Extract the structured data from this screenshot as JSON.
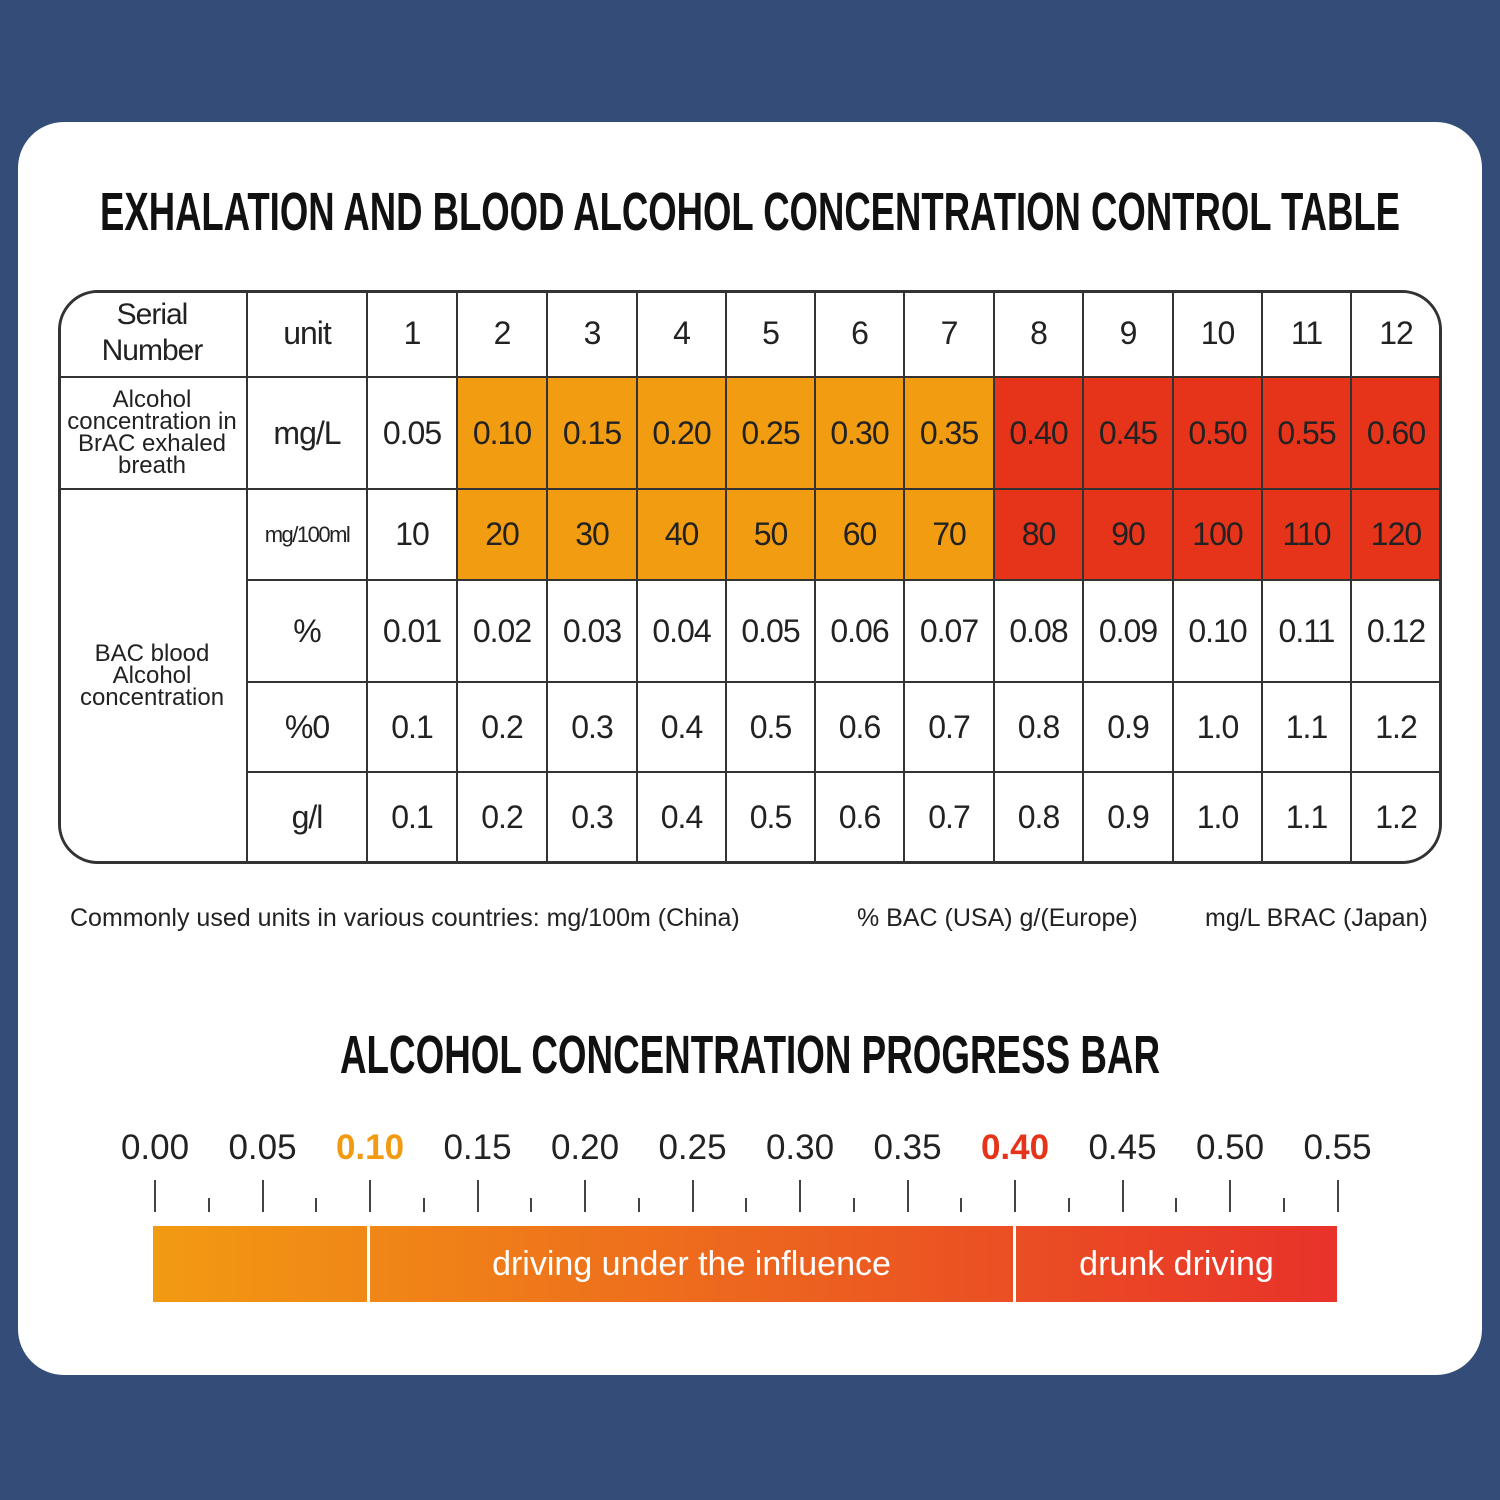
{
  "title": "EXHALATION AND BLOOD ALCOHOL CONCENTRATION CONTROL TABLE",
  "table": {
    "header": [
      "Serial Number",
      "unit",
      "1",
      "2",
      "3",
      "4",
      "5",
      "6",
      "7",
      "8",
      "9",
      "10",
      "11",
      "12"
    ],
    "rows": [
      {
        "label": "Alcohol concentration in BrAC exhaled breath",
        "unit": "mg/L",
        "values": [
          "0.05",
          "0.10",
          "0.15",
          "0.20",
          "0.25",
          "0.30",
          "0.35",
          "0.40",
          "0.45",
          "0.50",
          "0.55",
          "0.60"
        ]
      },
      {
        "label": "BAC blood Alcohol concentration",
        "unit": "mg/100ml",
        "values": [
          "10",
          "20",
          "30",
          "40",
          "50",
          "60",
          "70",
          "80",
          "90",
          "100",
          "110",
          "120"
        ]
      },
      {
        "unit": "%",
        "values": [
          "0.01",
          "0.02",
          "0.03",
          "0.04",
          "0.05",
          "0.06",
          "0.07",
          "0.08",
          "0.09",
          "0.10",
          "0.11",
          "0.12"
        ]
      },
      {
        "unit": "%0",
        "values": [
          "0.1",
          "0.2",
          "0.3",
          "0.4",
          "0.5",
          "0.6",
          "0.7",
          "0.8",
          "0.9",
          "1.0",
          "1.1",
          "1.2"
        ]
      },
      {
        "unit": "g/l",
        "values": [
          "0.1",
          "0.2",
          "0.3",
          "0.4",
          "0.5",
          "0.6",
          "0.7",
          "0.8",
          "0.9",
          "1.0",
          "1.1",
          "1.2"
        ]
      }
    ]
  },
  "note": [
    "Commonly used units in various countries: mg/100m (China)",
    "% BAC (USA) g/(Europe)",
    "mg/L BRAC (Japan)"
  ],
  "progress_bar": {
    "title": "ALCOHOL CONCENTRATION PROGRESS BAR",
    "ticks": [
      "0.00",
      "0.05",
      "0.10",
      "0.15",
      "0.20",
      "0.25",
      "0.30",
      "0.35",
      "0.40",
      "0.45",
      "0.50",
      "0.55"
    ],
    "tick_colors": [
      "#222222",
      "#222222",
      "#f29a12",
      "#222222",
      "#222222",
      "#222222",
      "#222222",
      "#222222",
      "#e5341a",
      "#222222",
      "#222222",
      "#222222"
    ],
    "segments": [
      "driving under the influence",
      "drunk driving"
    ]
  }
}
